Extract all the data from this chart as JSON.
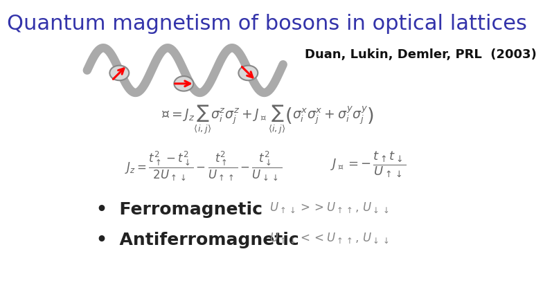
{
  "title": "Quantum magnetism of bosons in optical lattices",
  "title_color": "#3333aa",
  "title_fontsize": 22,
  "reference": "Duan, Lukin, Demler, PRL  (2003)",
  "reference_fontsize": 13,
  "background_color": "#ffffff",
  "eq1": "$\\mathcal{H} = J_z \\sum_{\\langle i,j \\rangle} \\sigma_i^z \\sigma_j^z + J_\\perp \\sum_{\\langle i,j \\rangle} \\left( \\sigma_i^x \\sigma_j^x + \\sigma_i^y \\sigma_j^y \\right)$",
  "eq2": "$J_z = \\dfrac{t_\\uparrow^2 - t_\\downarrow^2}{2U_{\\uparrow\\downarrow}} - \\dfrac{t_\\uparrow^2}{U_{\\uparrow\\uparrow}} - \\dfrac{t_\\downarrow^2}{U_{\\downarrow\\downarrow}}$",
  "eq3": "$J_\\perp = -\\,\\dfrac{t_\\uparrow t_\\downarrow}{U_{\\uparrow\\downarrow}}$",
  "eq4": "$U_{\\uparrow\\downarrow} >> U_{\\uparrow\\uparrow},\\, U_{\\downarrow\\downarrow}$",
  "eq5": "$U_{\\uparrow\\downarrow} << U_{\\uparrow\\uparrow},\\, U_{\\downarrow\\downarrow}$",
  "bullet1": "Ferromagnetic",
  "bullet2": "Antiferromagnetic",
  "bullet_fontsize": 18,
  "eq_color": "#666666",
  "bullet_color": "#222222"
}
